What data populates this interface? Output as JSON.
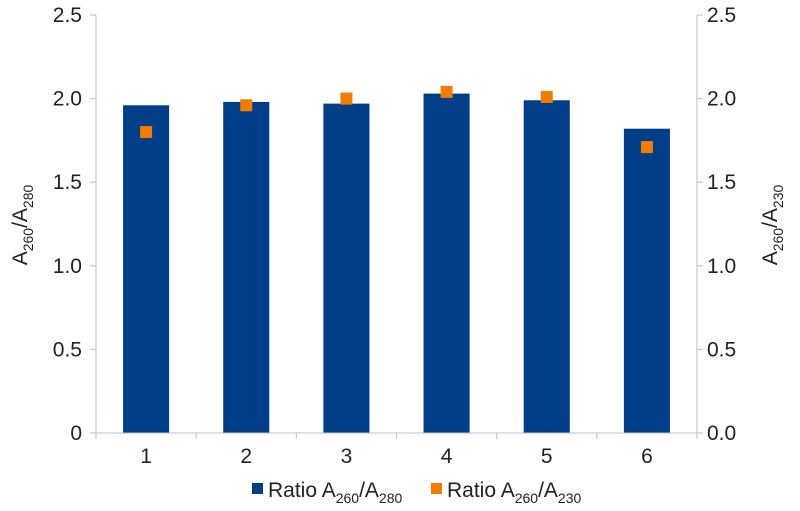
{
  "colors": {
    "bar": "#003F87",
    "marker": "#F07D00",
    "axis": "#bfbfbf"
  },
  "chart_data": {
    "type": "bar",
    "categories": [
      "1",
      "2",
      "3",
      "4",
      "5",
      "6"
    ],
    "series": [
      {
        "name_parts": [
          "Ratio A",
          "260",
          "/A",
          "280"
        ],
        "kind": "bar",
        "axis": "left",
        "values": [
          1.96,
          1.98,
          1.97,
          2.03,
          1.99,
          1.82
        ]
      },
      {
        "name_parts": [
          "Ratio A",
          "260",
          "/A",
          "230"
        ],
        "kind": "scatter",
        "axis": "right",
        "values": [
          1.8,
          1.96,
          2.0,
          2.04,
          2.01,
          1.71
        ]
      }
    ],
    "y_left": {
      "label_parts": [
        "A",
        "260",
        "/A",
        "280"
      ],
      "ylim": [
        0,
        2.5
      ],
      "ticks": [
        "0",
        "0.5",
        "1.0",
        "1.5",
        "2.0",
        "2.5"
      ]
    },
    "y_right": {
      "label_parts": [
        "A",
        "260",
        "/A",
        "230"
      ],
      "ylim": [
        0,
        2.5
      ],
      "ticks": [
        "0.0",
        "0.5",
        "1.0",
        "1.5",
        "2.0",
        "2.5"
      ]
    },
    "grid": false,
    "legend": "bottom-center"
  }
}
